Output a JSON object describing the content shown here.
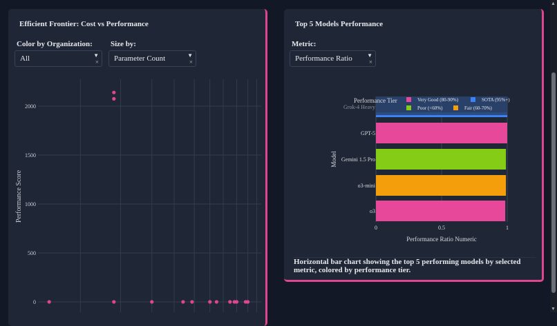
{
  "left_panel": {
    "title": "Efficient Frontier: Cost vs Performance",
    "color_label": "Color by Organization:",
    "color_value": "All",
    "size_label": "Size by:",
    "size_value": "Parameter Count"
  },
  "right_panel": {
    "title": "Top 5 Models Performance",
    "metric_label": "Metric:",
    "metric_value": "Performance Ratio",
    "caption": "Horizontal bar chart showing the top 5 performing models by selected metric, colored by performance tier."
  },
  "chart_data": [
    {
      "type": "scatter",
      "title": "Efficient Frontier: Cost vs Performance",
      "ylabel": "Performance Score",
      "xlabel": "",
      "xscale": "log (tick labels not visible)",
      "x_rel": [
        0.5,
        3.4,
        3.4,
        3.4,
        5.1,
        6.5,
        6.9,
        7.7,
        8.0,
        8.6,
        8.8,
        8.9,
        9.3,
        9.4
      ],
      "y": [
        0,
        2140,
        2075,
        0,
        0,
        0,
        0,
        0,
        0,
        0,
        0,
        0,
        0,
        0
      ],
      "ylim": [
        0,
        2275
      ],
      "yticks": [
        "0",
        "500",
        "1000",
        "1500",
        "2000"
      ],
      "color": "#e0468f"
    },
    {
      "type": "bar",
      "orientation": "horizontal",
      "xlabel": "Performance Ratio Numeric",
      "ylabel": "Model",
      "xlim": [
        0,
        1
      ],
      "xticks": [
        "0",
        "0.5",
        "1"
      ],
      "categories": [
        "Grok-4 Heavy",
        "GPT-5",
        "Gemini 1.5 Pro",
        "o3-mini",
        "o3"
      ],
      "values": [
        1.0,
        1.0,
        0.99,
        0.99,
        0.985
      ],
      "tiers": [
        "SOTA (95%+)",
        "Very Good (80-90%)",
        "Poor (<60%)",
        "Fair (60-70%)",
        "Very Good (80-90%)"
      ],
      "legend": {
        "title": "Performance Tier",
        "position": "top",
        "entries": [
          {
            "name": "Very Good (80-90%)",
            "color": "#e8489a"
          },
          {
            "name": "SOTA (95%+)",
            "color": "#3b82f6"
          },
          {
            "name": "Poor (<60%)",
            "color": "#84cc16"
          },
          {
            "name": "Fair (60-70%)",
            "color": "#f59e0b"
          }
        ]
      }
    }
  ]
}
